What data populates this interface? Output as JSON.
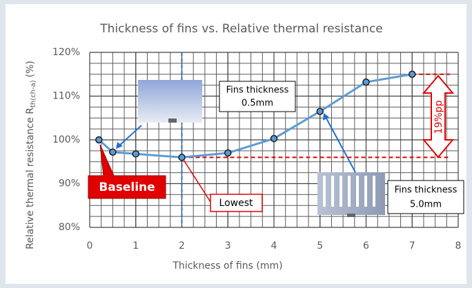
{
  "chart_data": {
    "type": "line",
    "title": "Thickness of fins vs. Relative thermal resistance",
    "x_label": "Thickness of fins (mm)",
    "y_label": {
      "text": "Relative thermal resistance R",
      "subscript": "th(ch-a)",
      "suffix": "(%)"
    },
    "x": [
      0.2,
      0.5,
      1,
      2,
      3,
      4,
      5,
      6,
      7
    ],
    "series": [
      {
        "color": "#5b9bd5",
        "values": [
          100,
          97.2,
          96.8,
          96.0,
          97.0,
          100.3,
          106.5,
          113.2,
          115.0
        ]
      }
    ],
    "xlim": [
      0,
      8
    ],
    "xticks": [
      0,
      1,
      2,
      3,
      4,
      5,
      6,
      7,
      8
    ],
    "ylim": [
      80,
      120
    ],
    "yticks": [
      {
        "value": 80,
        "label": "80%"
      },
      {
        "value": 90,
        "label": "90%"
      },
      {
        "value": 100,
        "label": "100%"
      },
      {
        "value": 110,
        "label": "110%"
      },
      {
        "value": 120,
        "label": "120%"
      }
    ],
    "grid": true,
    "minor_grid": {
      "x": 0.25,
      "y": 2.5
    },
    "annotations": {
      "baseline": "Baseline",
      "lowest": "Lowest",
      "fins_thin": [
        "Fins thickness",
        "0.5mm"
      ],
      "fins_thick": [
        "Fins thickness",
        "5.0mm"
      ],
      "difference": "19%pp"
    }
  }
}
